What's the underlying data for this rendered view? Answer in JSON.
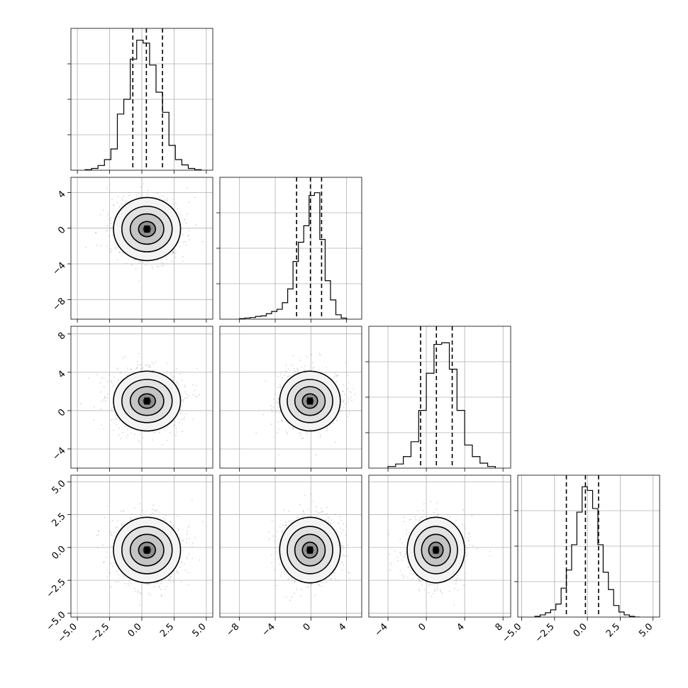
{
  "chart_data": {
    "type": "corner",
    "n_params": 4,
    "grid": true,
    "params": [
      {
        "range": [
          -5.5,
          5.5
        ],
        "ticks": [
          -5.0,
          -2.5,
          0.0,
          2.5,
          5.0
        ],
        "tick_labels": [
          "−5.0",
          "−2.5",
          "0.0",
          "2.5",
          "5.0"
        ]
      },
      {
        "range": [
          -10.2,
          5.7
        ],
        "ticks": [
          -8,
          -4,
          0,
          4
        ],
        "tick_labels": [
          "−8",
          "−4",
          "0",
          "4"
        ]
      },
      {
        "range": [
          -6.0,
          8.8
        ],
        "ticks": [
          -4,
          0,
          4,
          8
        ],
        "tick_labels": [
          "−4",
          "0",
          "4",
          "8"
        ]
      },
      {
        "range": [
          -5.3,
          5.5
        ],
        "ticks": [
          -5.0,
          -2.5,
          0.0,
          2.5,
          5.0
        ],
        "tick_labels": [
          "−5.0",
          "−2.5",
          "0.0",
          "2.5",
          "5.0"
        ]
      }
    ],
    "histograms": [
      {
        "bin_edges": [
          -4.4,
          -3.9,
          -3.4,
          -2.9,
          -2.4,
          -1.9,
          -1.4,
          -0.9,
          -0.4,
          0.1,
          0.6,
          1.1,
          1.6,
          2.1,
          2.6,
          3.1,
          3.6,
          4.1,
          4.6
        ],
        "counts": [
          1,
          3,
          8,
          18,
          36,
          95,
          120,
          188,
          220,
          215,
          178,
          132,
          98,
          42,
          18,
          9,
          3,
          1
        ],
        "ymax": 240,
        "quantiles": [
          -0.7,
          0.35,
          1.6
        ]
      },
      {
        "bin_edges": [
          -8.0,
          -7.4,
          -6.8,
          -6.2,
          -5.6,
          -5.0,
          -4.4,
          -3.8,
          -3.2,
          -2.6,
          -2.0,
          -1.4,
          -0.8,
          -0.2,
          0.4,
          1.0,
          1.6,
          2.2,
          2.8,
          3.4,
          4.0
        ],
        "counts": [
          1,
          2,
          3,
          5,
          6,
          10,
          14,
          18,
          30,
          55,
          105,
          140,
          170,
          225,
          230,
          145,
          70,
          35,
          8,
          2
        ],
        "ymax": 258,
        "quantiles": [
          -1.6,
          -0.05,
          1.2
        ]
      },
      {
        "bin_edges": [
          -4.0,
          -3.2,
          -2.4,
          -1.6,
          -0.8,
          0.0,
          0.8,
          1.6,
          2.4,
          3.2,
          4.0,
          4.8,
          5.6,
          6.4,
          7.2
        ],
        "counts": [
          2,
          5,
          14,
          32,
          70,
          115,
          150,
          152,
          120,
          70,
          28,
          14,
          6,
          2
        ],
        "ymax": 172,
        "quantiles": [
          -0.6,
          1.05,
          2.7
        ]
      },
      {
        "bin_edges": [
          -4.0,
          -3.6,
          -3.2,
          -2.8,
          -2.4,
          -2.0,
          -1.6,
          -1.2,
          -0.8,
          -0.4,
          0.0,
          0.4,
          0.8,
          1.2,
          1.6,
          2.0,
          2.4,
          2.8,
          3.2,
          3.6,
          4.0
        ],
        "counts": [
          1,
          3,
          6,
          10,
          18,
          40,
          65,
          100,
          145,
          180,
          175,
          150,
          100,
          62,
          38,
          16,
          7,
          3,
          1,
          0
        ],
        "ymax": 196,
        "quantiles": [
          -1.6,
          -0.15,
          0.85
        ]
      }
    ],
    "means": [
      0.4,
      -0.1,
      1.0,
      -0.2
    ],
    "sigmas": [
      1.3,
      1.7,
      1.5,
      1.2
    ]
  }
}
